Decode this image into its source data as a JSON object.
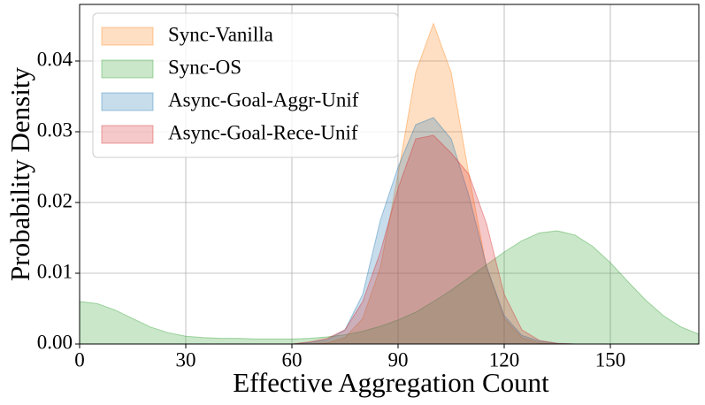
{
  "chart_data": {
    "type": "area",
    "x_label": "Effective Aggregation Count",
    "y_label": "Probability Density",
    "x": [
      0,
      5,
      10,
      15,
      20,
      25,
      30,
      35,
      40,
      45,
      50,
      55,
      60,
      65,
      70,
      75,
      80,
      85,
      90,
      95,
      100,
      105,
      110,
      115,
      120,
      125,
      130,
      135,
      140,
      145,
      150,
      155,
      160,
      165,
      170,
      175
    ],
    "series": [
      {
        "name": "Sync-Vanilla",
        "color": "#ff7f0e",
        "values": [
          0,
          0,
          0,
          0,
          0,
          0,
          0,
          0,
          0,
          0,
          0,
          0,
          0,
          0,
          0.00015,
          0.0009,
          0.0036,
          0.0108,
          0.024,
          0.0384,
          0.0453,
          0.0384,
          0.024,
          0.0108,
          0.0036,
          0.0009,
          0.00015,
          0,
          0,
          0,
          0,
          0,
          0,
          0,
          0,
          0
        ]
      },
      {
        "name": "Sync-OS",
        "color": "#2ca02c",
        "values": [
          0.006,
          0.0057,
          0.0048,
          0.0036,
          0.0024,
          0.0016,
          0.0011,
          0.0009,
          0.0008,
          0.0008,
          0.0007,
          0.0007,
          0.0007,
          0.0008,
          0.001,
          0.0013,
          0.0018,
          0.0025,
          0.0034,
          0.0045,
          0.006,
          0.0076,
          0.0094,
          0.0112,
          0.013,
          0.0146,
          0.0157,
          0.016,
          0.0154,
          0.0138,
          0.0115,
          0.0088,
          0.0062,
          0.004,
          0.0024,
          0.0014
        ]
      },
      {
        "name": "Async-Goal-Aggr-Unif",
        "color": "#1f77b4",
        "values": [
          0,
          0,
          0,
          0,
          0,
          0,
          0,
          0,
          0,
          0,
          0,
          0,
          0,
          0.0002,
          0.0006,
          0.002,
          0.007,
          0.0175,
          0.025,
          0.031,
          0.032,
          0.029,
          0.021,
          0.011,
          0.004,
          0.0012,
          0.0004,
          0.0001,
          0,
          0,
          0,
          0,
          0,
          0,
          0,
          0
        ]
      },
      {
        "name": "Async-Goal-Rece-Unif",
        "color": "#d62728",
        "values": [
          0,
          0,
          0,
          0,
          0,
          0,
          0,
          0,
          0,
          0,
          0,
          0,
          0,
          0.0003,
          0.0008,
          0.002,
          0.006,
          0.013,
          0.022,
          0.029,
          0.0295,
          0.027,
          0.024,
          0.017,
          0.007,
          0.002,
          0.0005,
          0.0001,
          0,
          0,
          0,
          0,
          0,
          0,
          0,
          0
        ]
      }
    ],
    "xlim": [
      0,
      175
    ],
    "ylim": [
      0,
      0.048
    ],
    "xticks": [
      0,
      30,
      60,
      90,
      120,
      150
    ],
    "yticks": [
      {
        "value": 0,
        "label": "0.00"
      },
      0.01,
      0.02,
      0.03,
      0.04
    ],
    "grid": true,
    "legend": "upper-left",
    "fill_opacity": 0.25
  }
}
